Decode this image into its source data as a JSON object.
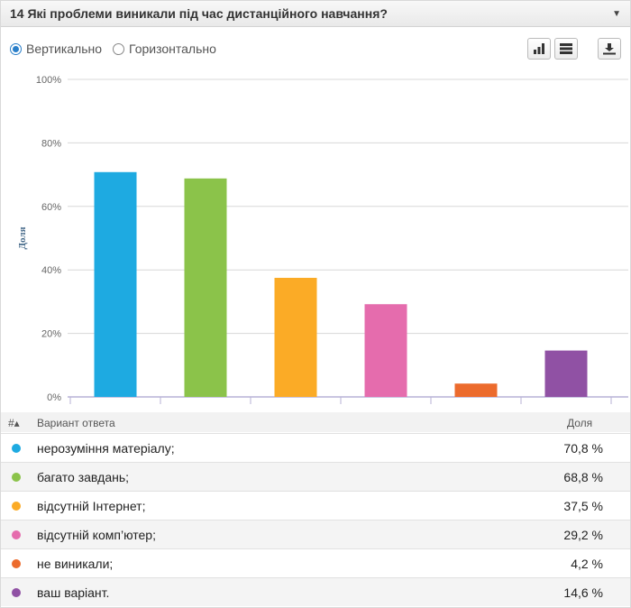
{
  "header": {
    "title": "14 Які проблеми виникали під час дистанційного навчання?",
    "collapse_icon": "chevron-down-icon"
  },
  "controls": {
    "orientation_options": [
      {
        "label": "Вертикально",
        "selected": true
      },
      {
        "label": "Горизонтально",
        "selected": false
      }
    ],
    "tools": [
      "bar-chart-icon",
      "table-icon",
      "download-icon"
    ]
  },
  "chart_data": {
    "type": "bar",
    "categories": [
      "нерозуміння матеріалу;",
      "багато завдань;",
      "відсутній Інтернет;",
      "відсутній комп'ютер;",
      "не виникали;",
      "ваш варіант."
    ],
    "values": [
      70.8,
      68.8,
      37.5,
      29.2,
      4.2,
      14.6
    ],
    "colors": [
      "#1eaae1",
      "#8bc34a",
      "#fbab26",
      "#e56cad",
      "#ec6b2d",
      "#9051a4"
    ],
    "ylabel": "Доля",
    "ylim": [
      0,
      100
    ],
    "yticks": [
      "0%",
      "20%",
      "40%",
      "60%",
      "80%",
      "100%"
    ],
    "ytick_values": [
      0,
      20,
      40,
      60,
      80,
      100
    ],
    "grid": true,
    "axis_color": "#b7b2d6"
  },
  "table": {
    "headers": {
      "num": "#▴",
      "answer": "Вариант ответа",
      "share": "Доля"
    },
    "rows": [
      {
        "label": "нерозуміння матеріалу;",
        "value": "70,8 %",
        "color": "#1eaae1"
      },
      {
        "label": "багато завдань;",
        "value": "68,8 %",
        "color": "#8bc34a"
      },
      {
        "label": "відсутній Інтернет;",
        "value": "37,5 %",
        "color": "#fbab26"
      },
      {
        "label": "відсутній комп’ютер;",
        "value": "29,2 %",
        "color": "#e56cad"
      },
      {
        "label": "не виникали;",
        "value": "4,2 %",
        "color": "#ec6b2d"
      },
      {
        "label": "ваш варіант.",
        "value": "14,6 %",
        "color": "#9051a4"
      }
    ]
  }
}
